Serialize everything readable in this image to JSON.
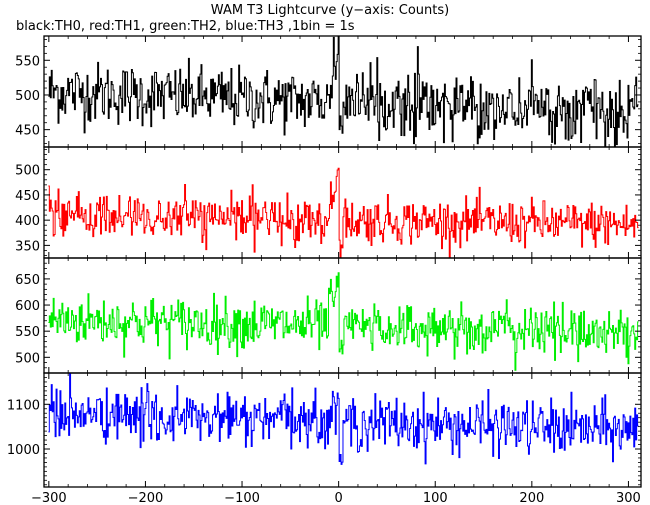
{
  "chart_data": {
    "type": "line",
    "title": "WAM T3 Lightcurve (y−axis: Counts)",
    "subtitle": "black:TH0, red:TH1, green:TH2, blue:TH3 ,1bin = 1s",
    "xlabel": "",
    "ylabel": "",
    "xlim": [
      -305,
      313
    ],
    "x_ticks": [
      -300,
      -200,
      -100,
      0,
      100,
      200,
      300
    ],
    "x_tick_labels": [
      "−300",
      "−200",
      "−100",
      "0",
      "100",
      "200",
      "300"
    ],
    "bin_seconds": 1,
    "grid": false,
    "legend": "none (colour key given in subtitle)",
    "panels": [
      {
        "name": "TH0",
        "color": "#000000",
        "ylim": [
          425,
          585
        ],
        "y_ticks": [
          450,
          500,
          550
        ],
        "baseline": 490,
        "noise_sd": 22,
        "trend_per_100s": -5,
        "burst_peak": 575,
        "after_dip": 445
      },
      {
        "name": "TH1",
        "color": "#ff0000",
        "ylim": [
          325,
          545
        ],
        "y_ticks": [
          350,
          400,
          450,
          500
        ],
        "baseline": 400,
        "noise_sd": 22,
        "trend_per_100s": -3,
        "burst_peak": 525,
        "after_dip": 345
      },
      {
        "name": "TH2",
        "color": "#00ee00",
        "ylim": [
          470,
          690
        ],
        "y_ticks": [
          500,
          550,
          600,
          650
        ],
        "baseline": 560,
        "noise_sd": 24,
        "trend_per_100s": -4,
        "burst_peak": 672,
        "after_dip": 515
      },
      {
        "name": "TH3",
        "color": "#0000ff",
        "ylim": [
          915,
          1170
        ],
        "y_ticks": [
          1000,
          1100
        ],
        "baseline": 1060,
        "noise_sd": 30,
        "trend_per_100s": -6,
        "burst_peak": 1120,
        "after_dip": 985
      }
    ]
  }
}
